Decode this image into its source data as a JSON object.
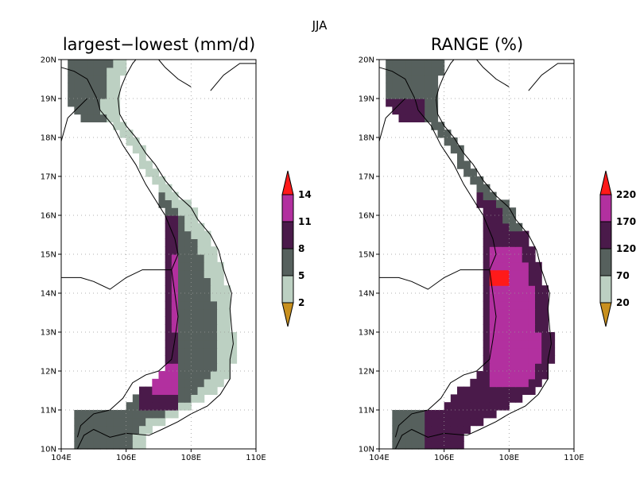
{
  "suptitle": "JJA",
  "map_extent": {
    "lon": [
      104,
      110
    ],
    "lat": [
      10,
      20
    ]
  },
  "lon_ticks": [
    "104E",
    "106E",
    "108E",
    "110E"
  ],
  "lat_ticks": [
    "10N",
    "11N",
    "12N",
    "13N",
    "14N",
    "15N",
    "16N",
    "17N",
    "18N",
    "19N",
    "20N"
  ],
  "panels": [
    {
      "title": "largest−lowest (mm/d)",
      "colorbar": {
        "labels": [
          "2",
          "5",
          "8",
          "11",
          "14"
        ],
        "colors": {
          "under": "#c8901e",
          "b1": "#bcd0c2",
          "b2": "#56605d",
          "b3": "#4a1a4a",
          "b4": "#b2309f",
          "over": "#ff1a1a"
        }
      },
      "region_levels": [
        "mid",
        "mid-high",
        "high",
        "very-high"
      ]
    },
    {
      "title": "RANGE (%)",
      "colorbar": {
        "labels": [
          "20",
          "70",
          "120",
          "170",
          "220"
        ],
        "colors": {
          "under": "#c8901e",
          "b1": "#bcd0c2",
          "b2": "#56605d",
          "b3": "#4a1a4a",
          "b4": "#b2309f",
          "over": "#ff1a1a"
        }
      },
      "region_levels": [
        "mid-high",
        "high",
        "very-high",
        "extreme"
      ]
    }
  ]
}
